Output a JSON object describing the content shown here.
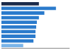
{
  "chart_data": {
    "type": "bar",
    "orientation": "horizontal",
    "categories": [
      null,
      null,
      null,
      null,
      null,
      null,
      null,
      null,
      null,
      null
    ],
    "values": [
      55,
      80,
      63,
      55,
      52,
      51,
      50,
      50,
      47,
      32
    ],
    "colors": [
      "#1c2b4a",
      "#2b7bcc",
      "#2b7bcc",
      "#2b7bcc",
      "#2b7bcc",
      "#2b7bcc",
      "#2b7bcc",
      "#2b7bcc",
      "#2b7bcc",
      "#7ab4e8"
    ],
    "xlim": [
      0,
      100
    ],
    "grid": false,
    "tick_labels": false
  }
}
